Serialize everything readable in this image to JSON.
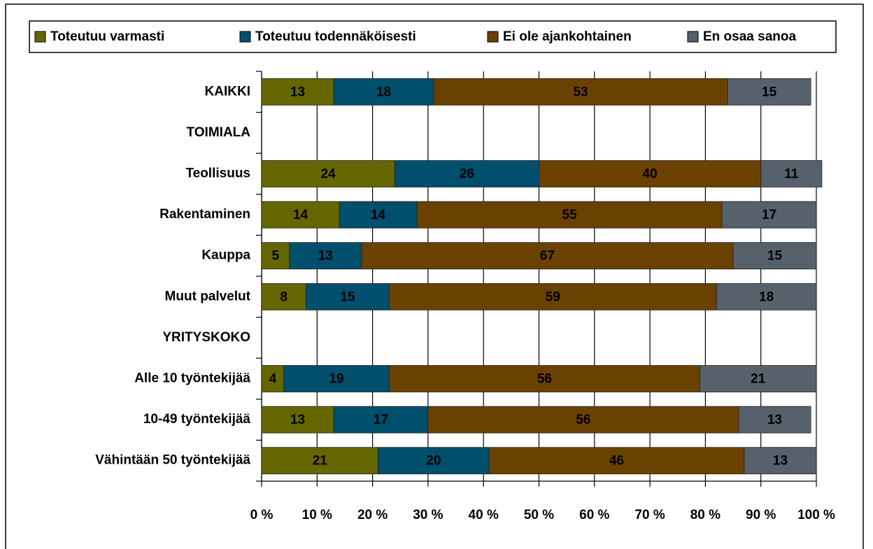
{
  "chart_data": {
    "type": "stacked-bar-horizontal",
    "categories": [
      "KAIKKI",
      "TOIMIALA",
      "Teollisuus",
      "Rakentaminen",
      "Kauppa",
      "Muut palvelut",
      "YRITYSKOKO",
      "Alle 10 työntekijää",
      "10-49 työntekijää",
      "Vähintään 50 työntekijää"
    ],
    "series": [
      {
        "name": "Toteutuu varmasti",
        "color": "#666600",
        "values": [
          13,
          null,
          24,
          14,
          5,
          8,
          null,
          4,
          13,
          21
        ]
      },
      {
        "name": "Toteutuu todennäköisesti",
        "color": "#004f6c",
        "values": [
          18,
          null,
          26,
          14,
          13,
          15,
          null,
          19,
          17,
          20
        ]
      },
      {
        "name": "Ei ole ajankohtainen",
        "color": "#6b4101",
        "values": [
          53,
          null,
          40,
          55,
          67,
          59,
          null,
          56,
          56,
          46
        ]
      },
      {
        "name": "En osaa sanoa",
        "color": "#56616c",
        "values": [
          15,
          null,
          11,
          17,
          15,
          18,
          null,
          21,
          13,
          13
        ]
      }
    ],
    "xlim": [
      0,
      100
    ],
    "xticks": [
      {
        "value": 0,
        "label": "0 %"
      },
      {
        "value": 10,
        "label": "10 %"
      },
      {
        "value": 20,
        "label": "20 %"
      },
      {
        "value": 30,
        "label": "30 %"
      },
      {
        "value": 40,
        "label": "40 %"
      },
      {
        "value": 50,
        "label": "50 %"
      },
      {
        "value": 60,
        "label": "60 %"
      },
      {
        "value": 70,
        "label": "70 %"
      },
      {
        "value": 80,
        "label": "80 %"
      },
      {
        "value": 90,
        "label": "90 %"
      },
      {
        "value": 100,
        "label": "100 %"
      }
    ],
    "grid": true,
    "legend": "top"
  }
}
